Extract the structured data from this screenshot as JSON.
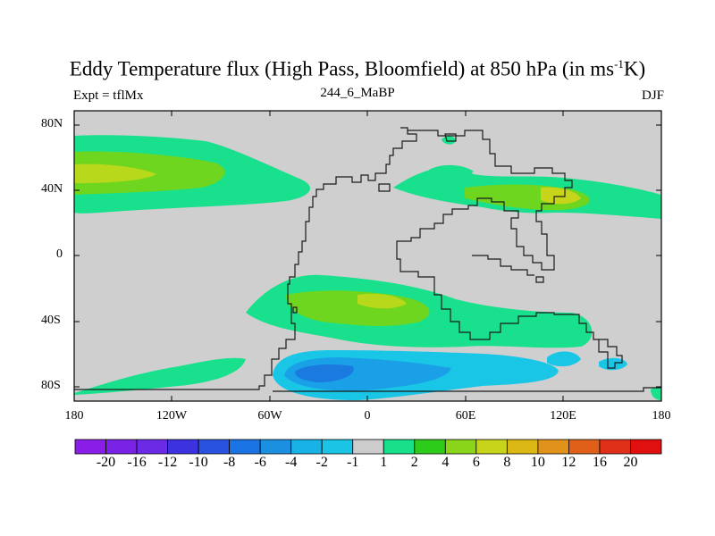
{
  "title": {
    "main": "Eddy Temperature flux (High Pass, Bloomfield) at 850 hPa (in ms",
    "superscript": "-1",
    "tail": "K)"
  },
  "subtitle_left": "Expt = tflMx",
  "subtitle_center": "244_6_MaBP",
  "subtitle_right": "DJF",
  "axes": {
    "y_ticks": [
      "80N",
      "40N",
      "0",
      "40S",
      "80S"
    ],
    "x_ticks": [
      "180",
      "120W",
      "60W",
      "0",
      "60E",
      "120E",
      "180"
    ],
    "lon_range": [
      -180,
      180
    ],
    "lat_range": [
      -90,
      90
    ]
  },
  "colorbar": {
    "labels": [
      "-20",
      "-16",
      "-12",
      "-10",
      "-8",
      "-6",
      "-4",
      "-2",
      "-1",
      "1",
      "2",
      "4",
      "6",
      "8",
      "10",
      "12",
      "16",
      "20"
    ],
    "colors": [
      "#8a1ee6",
      "#7a22e6",
      "#6a2ae6",
      "#3c32e0",
      "#2a52e0",
      "#1a74e4",
      "#1b8fe0",
      "#19b2e6",
      "#19c4e4",
      "#cccccc",
      "#18e08a",
      "#2ecc1a",
      "#8ad41a",
      "#c8d41a",
      "#dcb814",
      "#e0921a",
      "#e0601a",
      "#e0301a",
      "#e01010"
    ]
  },
  "colors": {
    "land_gray": "#cfcfcf",
    "green_light": "#19e08c",
    "green_mid": "#6ed61e",
    "green_yellow": "#b8d81c",
    "yellow": "#d8d41a",
    "blue_light": "#19c6e6",
    "blue_mid": "#1aa0e6",
    "blue_dark": "#1a7ae0"
  }
}
